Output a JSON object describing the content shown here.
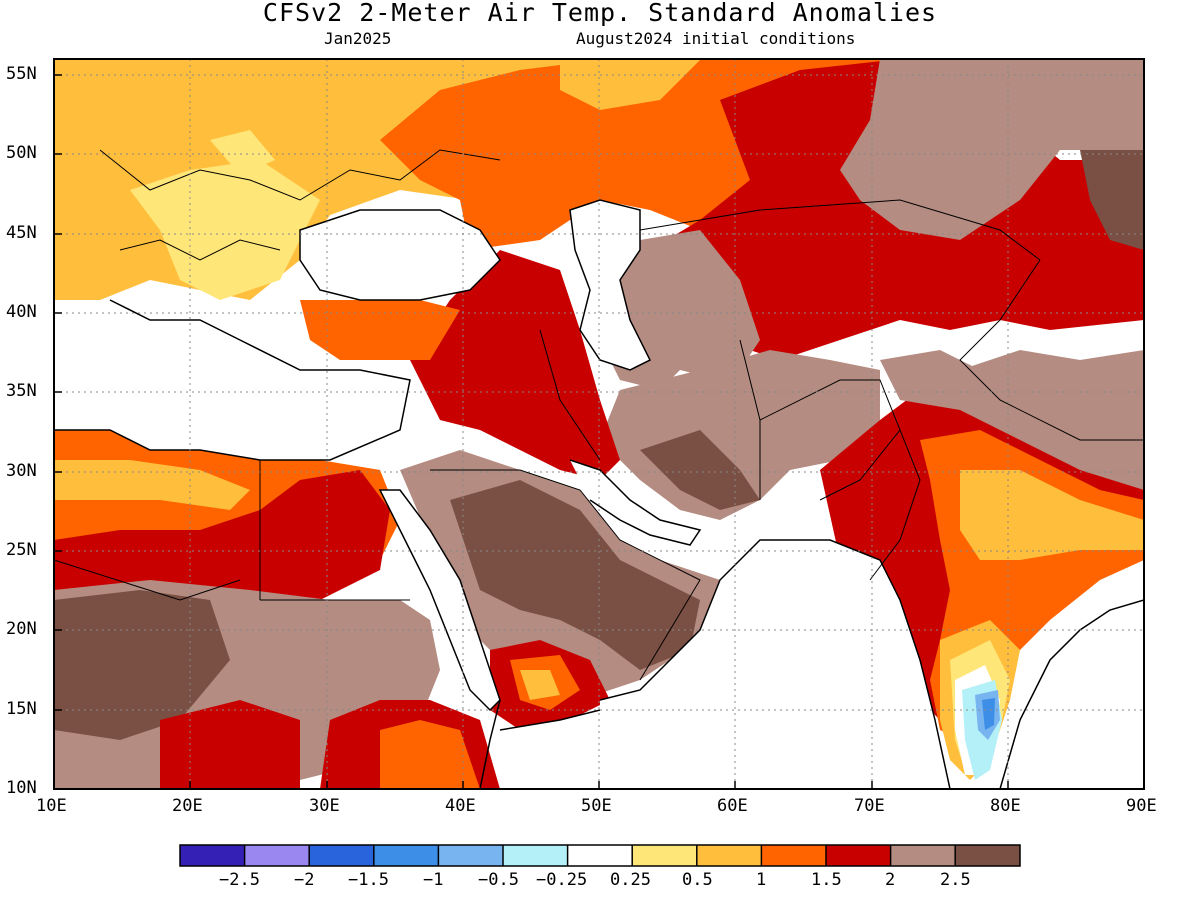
{
  "title": "CFSv2 2-Meter Air Temp. Standard Anomalies",
  "subtitle_left": "Jan2025",
  "subtitle_right": "August2024 initial conditions",
  "axes": {
    "x_labels": [
      "10E",
      "20E",
      "30E",
      "40E",
      "50E",
      "60E",
      "70E",
      "80E",
      "90E"
    ],
    "y_labels": [
      "55N",
      "50N",
      "45N",
      "40N",
      "35N",
      "30N",
      "25N",
      "20N",
      "15N",
      "10N"
    ],
    "lon_range": [
      10,
      90
    ],
    "lat_range": [
      10,
      56
    ],
    "grid": "dotted"
  },
  "colors": {
    "below_-2.5": "#3420b4",
    "-2.5_-2": "#9a88f0",
    "-2_-1.5": "#2a64dc",
    "-1.5_-1": "#3c8ee6",
    "-1_-0.5": "#78b4f0",
    "-0.5_-0.25": "#b4f0f8",
    "-0.25_0.25": "#ffffff",
    "0.25_0.5": "#ffe678",
    "0.5_1": "#ffbe3c",
    "1_1.5": "#ff6400",
    "1.5_2": "#c80000",
    "2_2.5": "#b48c82",
    "above_2.5": "#7a5044"
  },
  "colorbar": {
    "swatches": [
      "#3420b4",
      "#9a88f0",
      "#2a64dc",
      "#3c8ee6",
      "#78b4f0",
      "#b4f0f8",
      "#ffffff",
      "#ffe678",
      "#ffbe3c",
      "#ff6400",
      "#c80000",
      "#b48c82",
      "#7a5044"
    ],
    "labels": [
      "−2.5",
      "−2",
      "−1.5",
      "−1",
      "−0.5",
      "−0.25",
      "0.25",
      "0.5",
      "1",
      "1.5",
      "2",
      "2.5"
    ]
  }
}
